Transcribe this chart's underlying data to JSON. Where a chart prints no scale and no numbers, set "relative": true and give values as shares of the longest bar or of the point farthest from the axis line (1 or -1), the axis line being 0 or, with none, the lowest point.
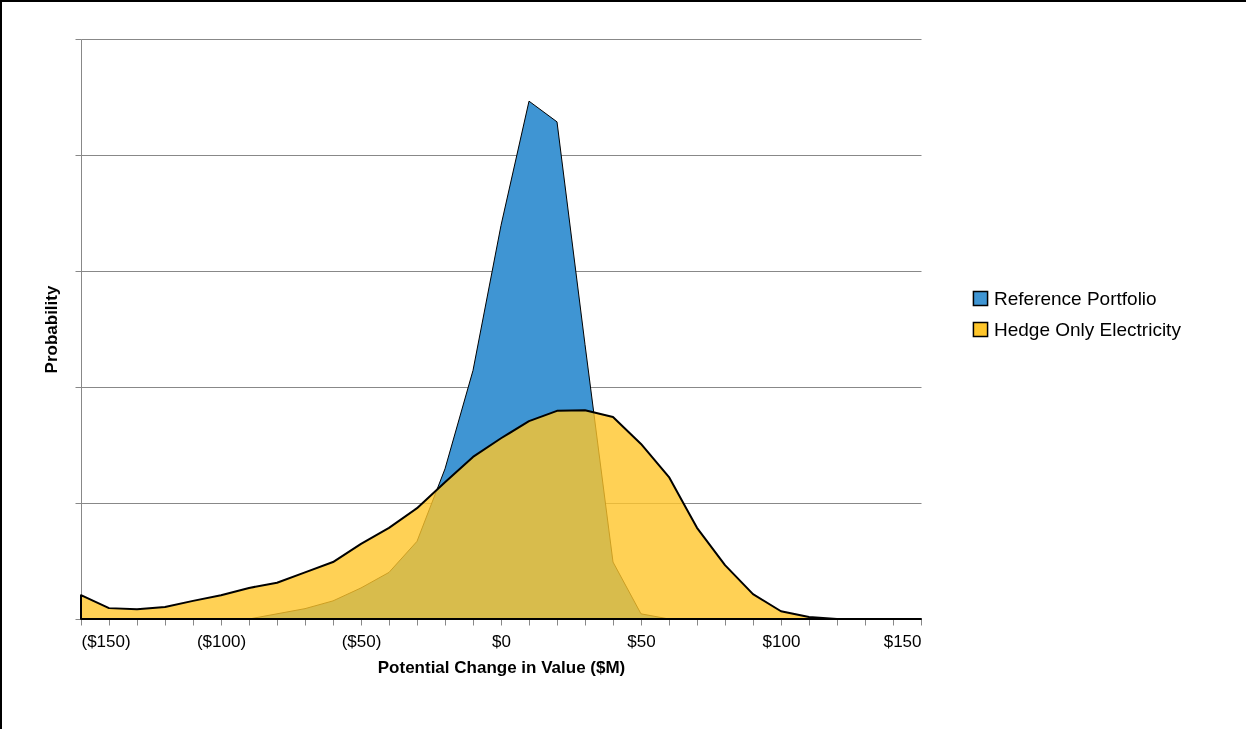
{
  "chart_data": {
    "type": "area",
    "relative": true,
    "xlabel": "Potential Change in Value ($M)",
    "ylabel": "Probability",
    "x": [
      -150,
      -140,
      -130,
      -120,
      -110,
      -100,
      -90,
      -80,
      -70,
      -60,
      -50,
      -40,
      -30,
      -20,
      -10,
      0,
      10,
      20,
      30,
      40,
      50,
      60,
      70,
      80,
      90,
      100,
      110,
      120,
      130,
      140,
      150
    ],
    "xlim": [
      -150,
      150
    ],
    "xticks": [
      {
        "value": -150,
        "label": "($150)"
      },
      {
        "value": -140,
        "label": null
      },
      {
        "value": -130,
        "label": null
      },
      {
        "value": -120,
        "label": null
      },
      {
        "value": -110,
        "label": null
      },
      {
        "value": -100,
        "label": "($100)"
      },
      {
        "value": -90,
        "label": null
      },
      {
        "value": -80,
        "label": null
      },
      {
        "value": -70,
        "label": null
      },
      {
        "value": -60,
        "label": null
      },
      {
        "value": -50,
        "label": "($50)"
      },
      {
        "value": -40,
        "label": null
      },
      {
        "value": -30,
        "label": null
      },
      {
        "value": -20,
        "label": null
      },
      {
        "value": -10,
        "label": null
      },
      {
        "value": 0,
        "label": "$0"
      },
      {
        "value": 10,
        "label": null
      },
      {
        "value": 20,
        "label": null
      },
      {
        "value": 30,
        "label": null
      },
      {
        "value": 40,
        "label": null
      },
      {
        "value": 50,
        "label": "$50"
      },
      {
        "value": 60,
        "label": null
      },
      {
        "value": 70,
        "label": null
      },
      {
        "value": 80,
        "label": null
      },
      {
        "value": 90,
        "label": null
      },
      {
        "value": 100,
        "label": "$100"
      },
      {
        "value": 110,
        "label": null
      },
      {
        "value": 120,
        "label": null
      },
      {
        "value": 130,
        "label": null
      },
      {
        "value": 140,
        "label": null
      },
      {
        "value": 150,
        "label": "$150"
      }
    ],
    "series": [
      {
        "name": "Reference Portfolio",
        "color": "#3f95d3",
        "values": [
          0,
          0,
          0,
          0,
          0,
          0,
          0,
          0.01,
          0.02,
          0.035,
          0.06,
          0.09,
          0.15,
          0.29,
          0.48,
          0.76,
          1,
          0.96,
          0.53,
          0.11,
          0.01,
          0,
          0,
          0,
          0,
          0,
          0,
          0,
          0,
          0,
          0
        ]
      },
      {
        "name": "Hedge Only Electricity",
        "color": "#ffc62b",
        "values": [
          0.046,
          0.021,
          0.019,
          0.023,
          0.035,
          0.046,
          0.06,
          0.07,
          0.09,
          0.11,
          0.145,
          0.176,
          0.214,
          0.264,
          0.313,
          0.349,
          0.382,
          0.402,
          0.403,
          0.39,
          0.338,
          0.274,
          0.176,
          0.104,
          0.048,
          0.015,
          0.004,
          0,
          0,
          0,
          0
        ]
      }
    ],
    "grid": "y",
    "legend": "right",
    "tick_labels": "x"
  }
}
